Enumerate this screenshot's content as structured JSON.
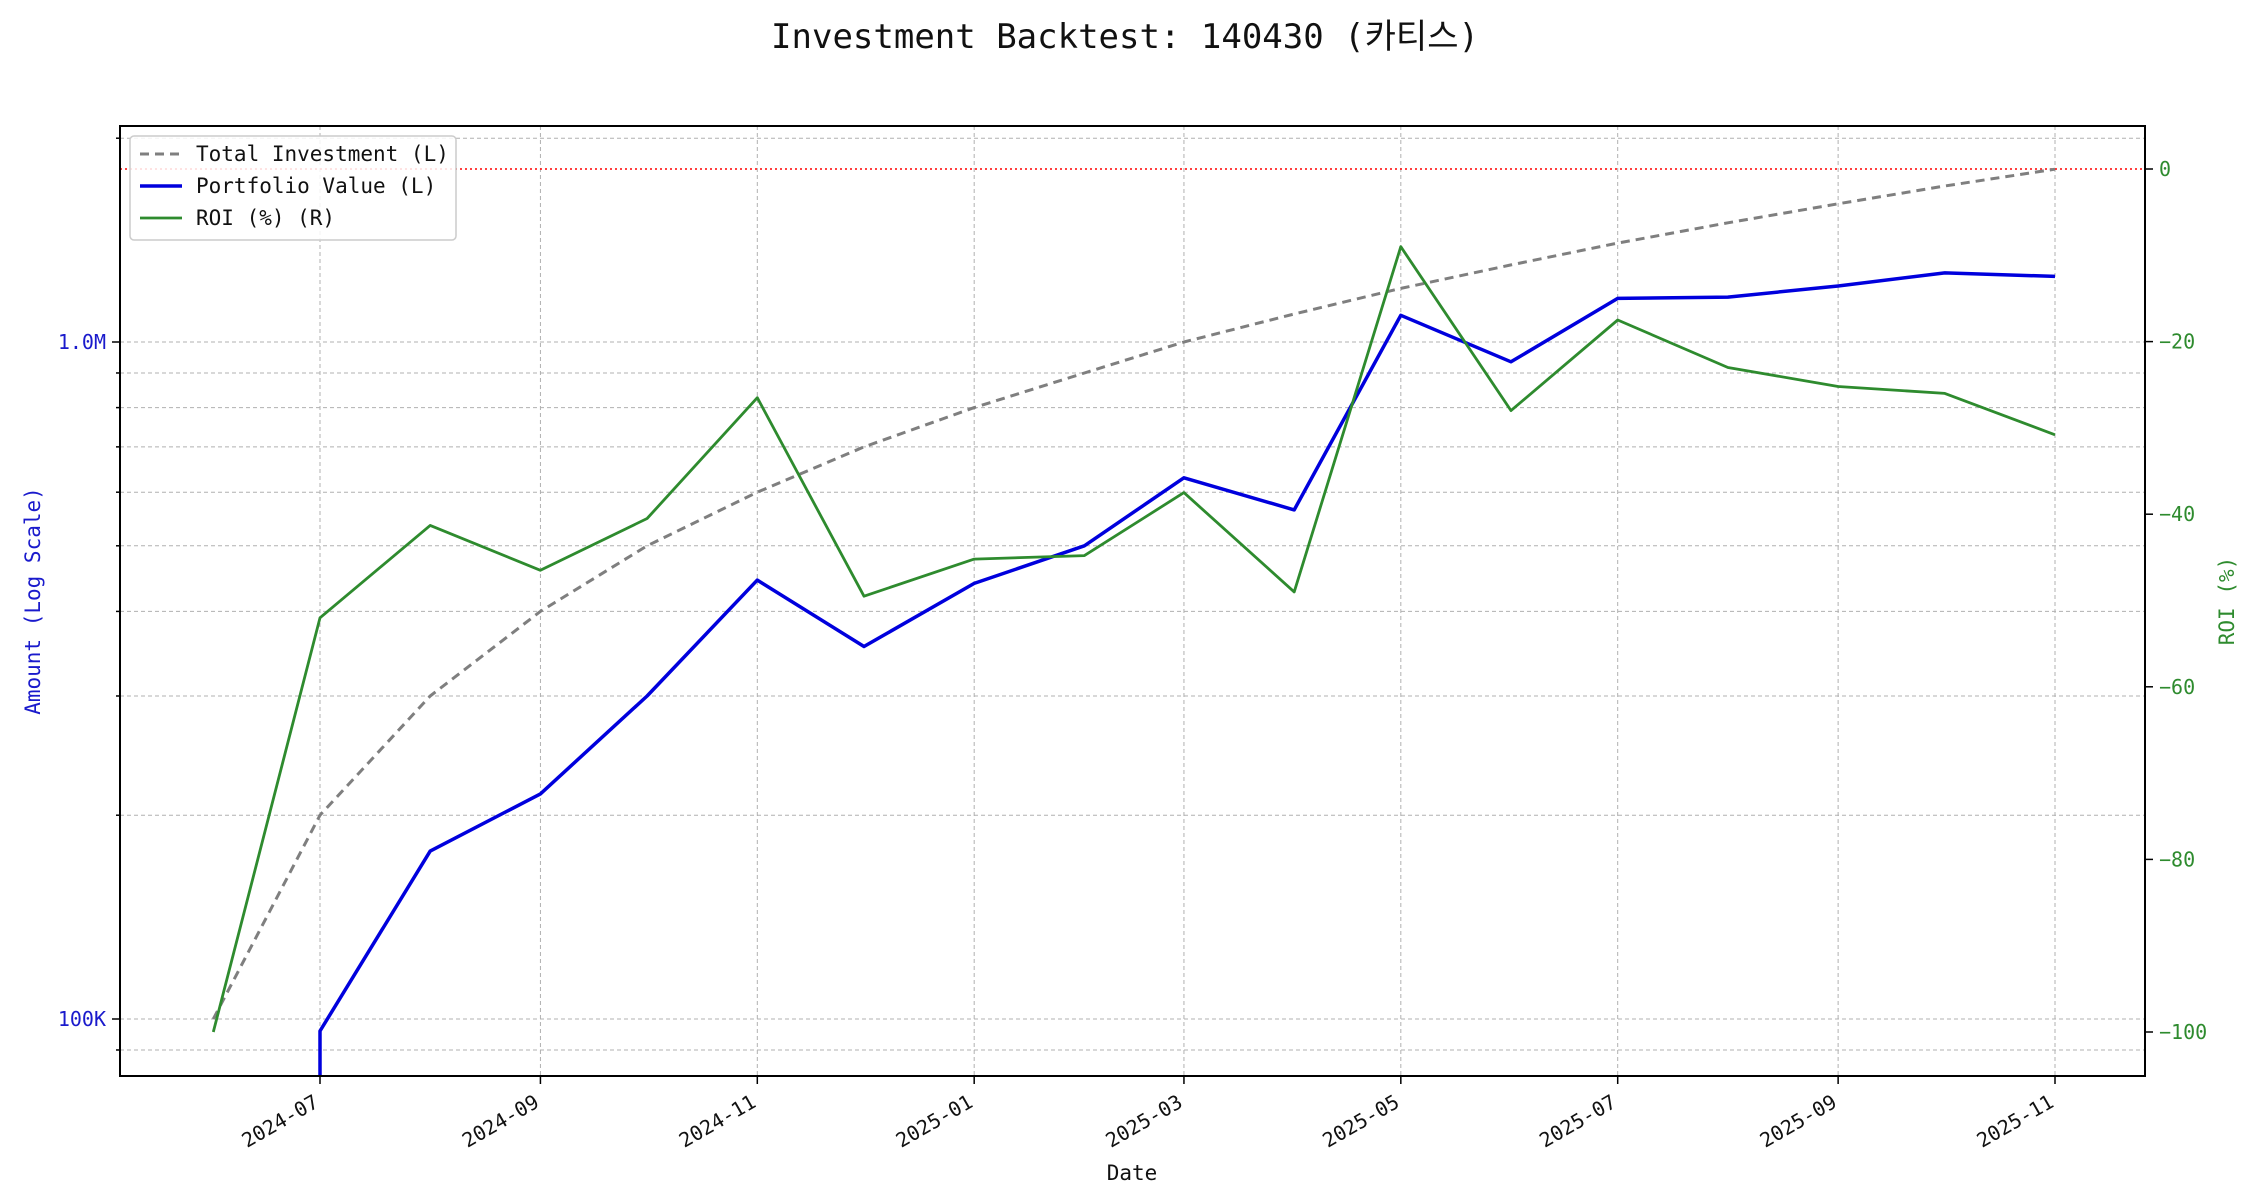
{
  "chart_data": {
    "type": "line",
    "title": "Investment Backtest: 140430 (카티스)",
    "xlabel": "Date",
    "ylabel_left": "Amount (Log Scale)",
    "ylabel_right": "ROI (%)",
    "left_axis": {
      "scale": "log",
      "ticks": [
        {
          "value": 100000,
          "label": "100K"
        },
        {
          "value": 1000000,
          "label": "1.0M"
        }
      ]
    },
    "right_axis": {
      "ticks": [
        0,
        -20,
        -40,
        -60,
        -80,
        -100
      ]
    },
    "x_ticks": [
      "2024-07",
      "2024-09",
      "2024-11",
      "2025-01",
      "2025-03",
      "2025-05",
      "2025-07",
      "2025-09",
      "2025-11"
    ],
    "x": [
      "2024-06-01",
      "2024-07-01",
      "2024-08-01",
      "2024-09-01",
      "2024-10-01",
      "2024-11-01",
      "2024-12-01",
      "2025-01-01",
      "2025-02-01",
      "2025-03-01",
      "2025-04-01",
      "2025-05-01",
      "2025-06-01",
      "2025-07-01",
      "2025-08-01",
      "2025-09-01",
      "2025-10-01",
      "2025-11-01"
    ],
    "series": [
      {
        "name": "Total Investment (L)",
        "axis": "left",
        "color": "#7f7f7f",
        "style": "dashed",
        "values": [
          100000,
          200000,
          300000,
          400000,
          500000,
          600000,
          700000,
          800000,
          900000,
          1000000,
          1100000,
          1200000,
          1300000,
          1400000,
          1500000,
          1600000,
          1700000,
          1800000
        ]
      },
      {
        "name": "Portfolio Value (L)",
        "axis": "left",
        "color": "#0000dd",
        "style": "solid",
        "values": [
          0,
          96000,
          177000,
          215000,
          300000,
          445000,
          355000,
          440000,
          500000,
          630000,
          565000,
          1095000,
          935000,
          1160000,
          1165000,
          1210000,
          1265000,
          1250000
        ]
      },
      {
        "name": "ROI (%) (R)",
        "axis": "right",
        "color": "#2e8b2e",
        "style": "solid",
        "values": [
          -100,
          -52,
          -41.3,
          -46.5,
          -40.5,
          -26.5,
          -49.5,
          -45.2,
          -44.8,
          -37.5,
          -49,
          -9,
          -28,
          -17.5,
          -23,
          -25.2,
          -26,
          -30.8
        ]
      }
    ],
    "reference_line": {
      "axis": "right",
      "value": 0,
      "color": "#ff0000",
      "style": "dotted"
    },
    "legend_position": "top-left",
    "grid": true
  }
}
